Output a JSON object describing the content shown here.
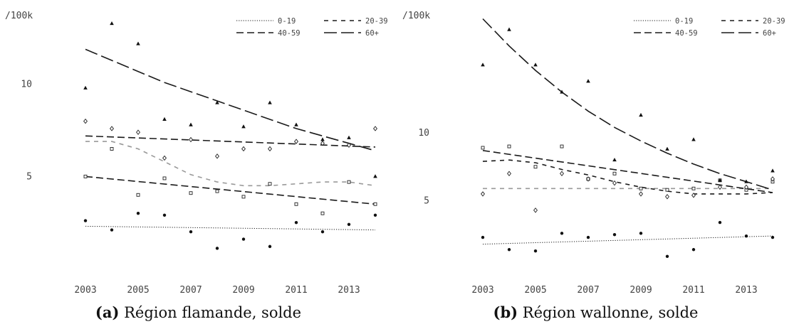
{
  "chart_data": [
    {
      "type": "scatter",
      "title": "",
      "ylabel": "/100k",
      "xlabel": "",
      "caption_label": "(a)",
      "caption_text": "Région flamande, solde",
      "x_ticks": [
        "2003",
        "2005",
        "2007",
        "2009",
        "2011",
        "2013"
      ],
      "y_ticks": [
        {
          "value": 5,
          "label": "5"
        },
        {
          "value": 10,
          "label": "10"
        }
      ],
      "xlim": [
        2003,
        2014
      ],
      "ylim": [
        0,
        14
      ],
      "legend_position": "top-right",
      "legend": [
        "0-19",
        "20-39",
        "40-59",
        "60+"
      ],
      "series": [
        {
          "name": "0-19",
          "marker": "circle",
          "line_style": "dotted",
          "x": [
            2003,
            2004,
            2005,
            2006,
            2007,
            2008,
            2009,
            2010,
            2011,
            2012,
            2013,
            2014
          ],
          "y": [
            2.6,
            2.1,
            3.0,
            2.9,
            2.0,
            1.1,
            1.6,
            1.2,
            2.5,
            2.0,
            2.4,
            2.9
          ],
          "trend_x": [
            2003,
            2014
          ],
          "trend_y": [
            2.3,
            2.1
          ]
        },
        {
          "name": "20-39",
          "marker": "square",
          "line_style": "short-dash",
          "x": [
            2003,
            2004,
            2005,
            2006,
            2007,
            2008,
            2009,
            2010,
            2011,
            2012,
            2013,
            2014
          ],
          "y": [
            5.0,
            6.5,
            4.0,
            4.9,
            4.1,
            4.2,
            3.9,
            4.6,
            3.5,
            3.0,
            4.7,
            3.5
          ],
          "trend_x": [
            2003,
            2004,
            2005,
            2006,
            2007,
            2008,
            2009,
            2010,
            2011,
            2012,
            2013,
            2014
          ],
          "trend_y": [
            6.9,
            6.9,
            6.5,
            5.8,
            5.1,
            4.7,
            4.5,
            4.5,
            4.6,
            4.7,
            4.7,
            4.5
          ]
        },
        {
          "name": "40-59",
          "marker": "diamond",
          "line_style": "dashed",
          "x": [
            2003,
            2004,
            2005,
            2006,
            2007,
            2008,
            2009,
            2010,
            2011,
            2012,
            2013,
            2014
          ],
          "y": [
            8.0,
            7.6,
            7.4,
            6.0,
            7.0,
            6.1,
            6.5,
            6.5,
            6.9,
            6.8,
            6.7,
            7.6
          ],
          "trend_x": [
            2003,
            2014
          ],
          "trend_y": [
            7.2,
            6.6
          ],
          "trend2_x": [
            2003,
            2014
          ],
          "trend2_y": [
            5.0,
            3.5
          ]
        },
        {
          "name": "60+",
          "marker": "triangle",
          "line_style": "long-dash",
          "x": [
            2003,
            2004,
            2005,
            2006,
            2007,
            2008,
            2009,
            2010,
            2011,
            2012,
            2013,
            2014
          ],
          "y": [
            9.8,
            13.3,
            12.2,
            8.1,
            7.8,
            9.0,
            7.7,
            9.0,
            7.8,
            7.0,
            7.1,
            5.0
          ],
          "trend_x": [
            2003,
            2004,
            2005,
            2006,
            2007,
            2008,
            2009,
            2010,
            2011,
            2012,
            2013,
            2014
          ],
          "trend_y": [
            11.9,
            11.3,
            10.7,
            10.1,
            9.6,
            9.1,
            8.6,
            8.1,
            7.6,
            7.2,
            6.8,
            6.4
          ]
        }
      ]
    },
    {
      "type": "scatter",
      "title": "",
      "ylabel": "/100k",
      "xlabel": "",
      "caption_label": "(b)",
      "caption_text": "Région wallonne, solde",
      "x_ticks": [
        "2003",
        "2005",
        "2007",
        "2009",
        "2011",
        "2013"
      ],
      "y_ticks": [
        {
          "value": 5,
          "label": "5"
        },
        {
          "value": 10,
          "label": "10"
        }
      ],
      "xlim": [
        2003,
        2014
      ],
      "ylim": [
        0,
        19
      ],
      "legend_position": "top-right",
      "legend": [
        "0-19",
        "20-39",
        "40-59",
        "60+"
      ],
      "series": [
        {
          "name": "0-19",
          "marker": "circle",
          "line_style": "dotted",
          "x": [
            2003,
            2004,
            2005,
            2006,
            2007,
            2008,
            2009,
            2010,
            2011,
            2012,
            2013,
            2014
          ],
          "y": [
            2.3,
            1.4,
            1.3,
            2.6,
            2.3,
            2.5,
            2.6,
            0.9,
            1.4,
            3.4,
            2.4,
            2.3
          ],
          "trend_x": [
            2003,
            2014
          ],
          "trend_y": [
            1.8,
            2.4
          ]
        },
        {
          "name": "20-39",
          "marker": "square",
          "line_style": "short-dash",
          "x": [
            2003,
            2004,
            2005,
            2006,
            2007,
            2008,
            2009,
            2010,
            2011,
            2012,
            2013,
            2014
          ],
          "y": [
            8.9,
            9.0,
            7.5,
            9.0,
            6.6,
            7.0,
            5.9,
            5.8,
            5.9,
            6.5,
            5.8,
            6.4
          ],
          "trend_x": [
            2003,
            2014
          ],
          "trend_y": [
            5.9,
            5.9
          ],
          "trend2_x": [
            2003,
            2004,
            2005,
            2006,
            2007,
            2008,
            2009,
            2010,
            2011,
            2012,
            2013,
            2014
          ],
          "trend2_y": [
            7.9,
            8.0,
            7.8,
            7.3,
            6.9,
            6.4,
            6.0,
            5.7,
            5.5,
            5.5,
            5.5,
            5.6
          ]
        },
        {
          "name": "40-59",
          "marker": "diamond",
          "line_style": "dashed",
          "x": [
            2003,
            2004,
            2005,
            2006,
            2007,
            2008,
            2009,
            2010,
            2011,
            2012,
            2013,
            2014
          ],
          "y": [
            5.5,
            7.0,
            4.3,
            7.0,
            6.6,
            6.3,
            5.5,
            5.3,
            5.4,
            6.0,
            6.0,
            6.6
          ],
          "trend_x": [
            2003,
            2014
          ],
          "trend_y": [
            8.7,
            5.6
          ]
        },
        {
          "name": "60+",
          "marker": "triangle",
          "line_style": "long-dash",
          "x": [
            2003,
            2004,
            2005,
            2006,
            2007,
            2008,
            2009,
            2010,
            2011,
            2012,
            2013,
            2014
          ],
          "y": [
            15.0,
            17.6,
            15.0,
            13.0,
            13.8,
            8.0,
            11.3,
            8.8,
            9.5,
            6.5,
            6.4,
            7.2
          ],
          "trend_x": [
            2003,
            2004,
            2005,
            2006,
            2007,
            2008,
            2009,
            2010,
            2011,
            2012,
            2013,
            2014
          ],
          "trend_y": [
            18.4,
            16.4,
            14.6,
            13.0,
            11.6,
            10.4,
            9.4,
            8.5,
            7.7,
            7.0,
            6.4,
            5.8
          ]
        }
      ]
    }
  ]
}
